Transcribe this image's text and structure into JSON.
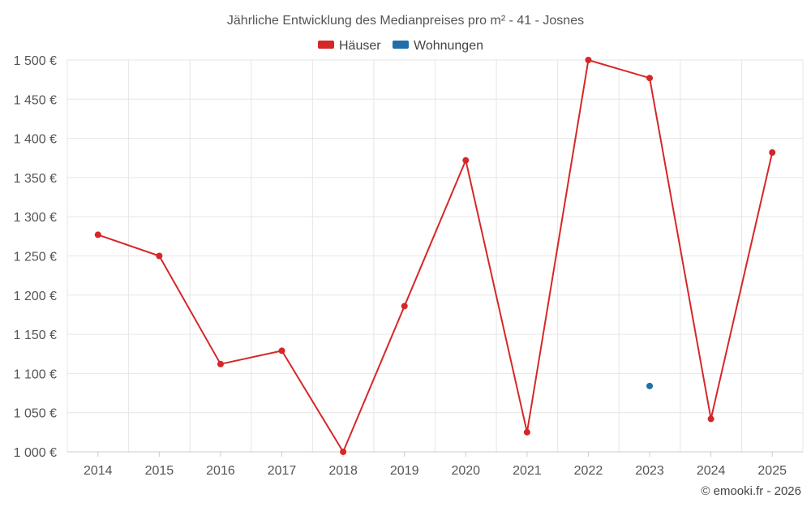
{
  "chart_data": {
    "type": "line",
    "title": "Jährliche Entwicklung des Medianpreises pro m² - 41 - Josnes",
    "categories": [
      "2014",
      "2015",
      "2016",
      "2017",
      "2018",
      "2019",
      "2020",
      "2021",
      "2022",
      "2023",
      "2024",
      "2025"
    ],
    "series": [
      {
        "name": "Häuser",
        "color": "#d62728",
        "values": [
          1277,
          1250,
          1112,
          1129,
          1000,
          1186,
          1372,
          1025,
          1500,
          1477,
          1042,
          1382
        ]
      },
      {
        "name": "Wohnungen",
        "color": "#1f6fa8",
        "values": [
          null,
          null,
          null,
          null,
          null,
          null,
          null,
          null,
          null,
          1084,
          null,
          null
        ]
      }
    ],
    "ylim": [
      1000,
      1500
    ],
    "yticks": [
      1000,
      1050,
      1100,
      1150,
      1200,
      1250,
      1300,
      1350,
      1400,
      1450,
      1500
    ],
    "ytick_labels": [
      "1 000 €",
      "1 050 €",
      "1 100 €",
      "1 150 €",
      "1 200 €",
      "1 250 €",
      "1 300 €",
      "1 350 €",
      "1 400 €",
      "1 450 €",
      "1 500 €"
    ],
    "xlabel": "",
    "ylabel": "",
    "grid": true,
    "legend_position": "top-center"
  },
  "credit": "© emooki.fr - 2026"
}
